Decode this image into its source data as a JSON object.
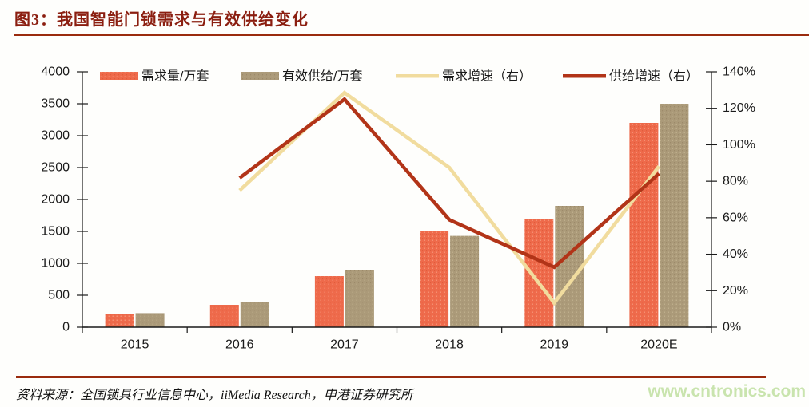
{
  "page": {
    "title": "图3：我国智能门锁需求与有效供给变化",
    "source_note": "资料来源：全国锁具行业信息中心，iiMedia Research，申港证券研究所",
    "watermark": "www.cntronics.com"
  },
  "colors": {
    "title_red": "#8B1E10",
    "rule_red": "#9A2B0E",
    "demand_bar": "#EE6A4B",
    "demand_bar_light": "#F9A184",
    "demand_bar_dark": "#D9542F",
    "supply_bar": "#AB9A79",
    "supply_bar_light": "#C6B794",
    "supply_bar_dark": "#93805F",
    "demand_line": "#F1DC9E",
    "supply_line": "#B23418",
    "axis": "#1A1A1A",
    "watermark_green": "#C9E4AE",
    "background": "#FEFEFC"
  },
  "chart_data": {
    "type": "bar",
    "subtype": "bar-line-combo",
    "title": "图3：我国智能门锁需求与有效供给变化",
    "categories": [
      "2015",
      "2016",
      "2017",
      "2018",
      "2019",
      "2020E"
    ],
    "series": [
      {
        "name": "需求量/万套",
        "type": "bar",
        "axis": "left",
        "values": [
          200,
          350,
          800,
          1500,
          1700,
          3200
        ],
        "color_key": "demand_bar"
      },
      {
        "name": "有效供给/万套",
        "type": "bar",
        "axis": "left",
        "values": [
          220,
          400,
          900,
          1430,
          1900,
          3500
        ],
        "color_key": "supply_bar"
      },
      {
        "name": "需求增速（右）",
        "type": "line",
        "axis": "right",
        "values": [
          null,
          75.0,
          128.6,
          87.5,
          13.3,
          88.2
        ],
        "color_key": "demand_line"
      },
      {
        "name": "供给增速（右）",
        "type": "line",
        "axis": "right",
        "values": [
          null,
          81.8,
          125.0,
          58.9,
          32.9,
          84.2
        ],
        "color_key": "supply_line"
      }
    ],
    "left_axis": {
      "min": 0,
      "max": 4000,
      "step": 500,
      "tick_labels": [
        "0",
        "500",
        "1000",
        "1500",
        "2000",
        "2500",
        "3000",
        "3500",
        "4000"
      ]
    },
    "right_axis": {
      "min": 0,
      "max": 140,
      "step": 20,
      "tick_labels": [
        "0%",
        "20%",
        "40%",
        "60%",
        "80%",
        "100%",
        "120%",
        "140%"
      ]
    },
    "xlabel": "",
    "ylabel": "",
    "grid": false,
    "legend_position": "top-inside"
  }
}
